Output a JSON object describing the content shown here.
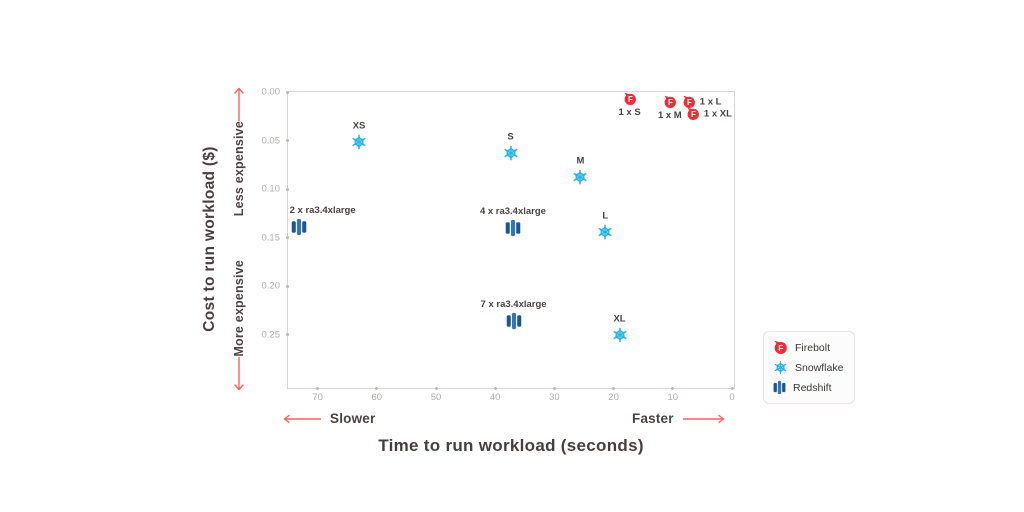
{
  "annotations": {
    "less_expensive": "Less expensive",
    "more_expensive": "More expensive",
    "slower": "Slower",
    "faster": "Faster"
  },
  "colors": {
    "firebolt_red": "#ee2d35",
    "snowflake_blue": "#29b5e8",
    "redshift_blue_dark": "#1e5597",
    "redshift_blue_mid": "#2e76bd",
    "arrow_red": "#f7605f",
    "tick_gray": "#b5acac",
    "text_dark": "#473e3e"
  },
  "chart_data": {
    "type": "scatter",
    "title": "",
    "x_axis": {
      "label": "Time to run workload (seconds)",
      "ticks": [
        70,
        60,
        50,
        40,
        30,
        20,
        10,
        0
      ],
      "reversed": true,
      "range_seconds": [
        75,
        0
      ]
    },
    "y_axis": {
      "label": "Cost to run workload ($)",
      "ticks": [
        "0.00",
        "0.05",
        "0.10",
        "0.15",
        "0.20",
        "0.25"
      ],
      "increases_downward": true,
      "range_dollars": [
        0,
        0.31
      ]
    },
    "series": [
      {
        "name": "Firebolt",
        "icon": "firebolt-icon",
        "color": "#ee2d35",
        "points": [
          {
            "label": "1 x S",
            "time_s": 17.3,
            "cost_usd": 0.007,
            "label_pos": "below"
          },
          {
            "label": "1 x M",
            "time_s": 10.5,
            "cost_usd": 0.01,
            "label_pos": "below"
          },
          {
            "label": "1 x L",
            "time_s": 7.3,
            "cost_usd": 0.01,
            "label_pos": "right"
          },
          {
            "label": "1 x XL",
            "time_s": 6.6,
            "cost_usd": 0.023,
            "label_pos": "right"
          }
        ]
      },
      {
        "name": "Snowflake",
        "icon": "snowflake-icon",
        "color": "#29b5e8",
        "points": [
          {
            "label": "XS",
            "time_s": 63.0,
            "cost_usd": 0.052,
            "label_pos": "above"
          },
          {
            "label": "S",
            "time_s": 37.4,
            "cost_usd": 0.063,
            "label_pos": "above"
          },
          {
            "label": "M",
            "time_s": 25.6,
            "cost_usd": 0.088,
            "label_pos": "above"
          },
          {
            "label": "L",
            "time_s": 21.4,
            "cost_usd": 0.144,
            "label_pos": "above"
          },
          {
            "label": "XL",
            "time_s": 19.0,
            "cost_usd": 0.25,
            "label_pos": "above"
          }
        ]
      },
      {
        "name": "Redshift",
        "icon": "redshift-icon",
        "color": "#2e76bd",
        "points": [
          {
            "label": "2 x ra3.4xlarge",
            "time_s": 73.2,
            "cost_usd": 0.139,
            "label_pos": "above-right"
          },
          {
            "label": "4 x ra3.4xlarge",
            "time_s": 37.0,
            "cost_usd": 0.14,
            "label_pos": "above"
          },
          {
            "label": "7 x ra3.4xlarge",
            "time_s": 36.9,
            "cost_usd": 0.236,
            "label_pos": "above"
          }
        ]
      }
    ],
    "legend": {
      "position": "right",
      "entries": [
        "Firebolt",
        "Snowflake",
        "Redshift"
      ]
    }
  }
}
